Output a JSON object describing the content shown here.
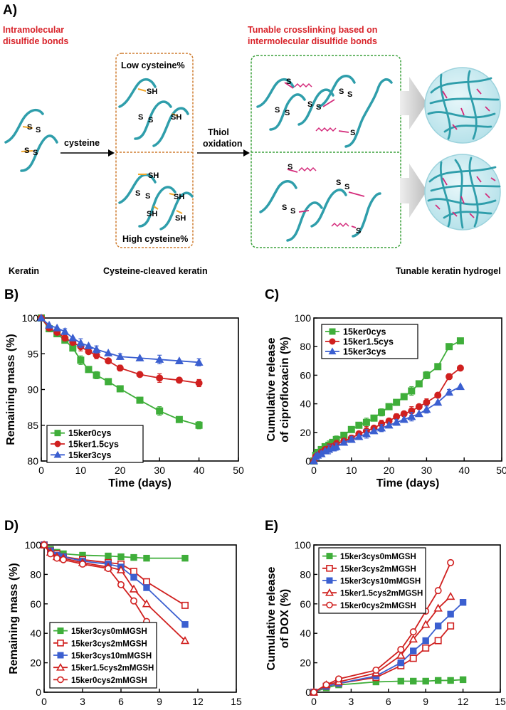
{
  "colors": {
    "green": "#3fae3a",
    "red": "#d0201f",
    "blue": "#3b5fd0",
    "redBright": "#e8272a",
    "teal": "#2f9eab",
    "pink": "#d42a7a",
    "orange": "#f0a62a",
    "darkred": "#d8232a",
    "dashOrange": "#cf7d30",
    "dashGreen": "#3aa03a"
  },
  "schematic": {
    "panel_label": "A)",
    "intramolecular": [
      "Intramolecular",
      "disulfide bonds"
    ],
    "tunable": [
      "Tunable crosslinking based on",
      "intermolecular disulfide bonds"
    ],
    "low": "Low cysteine%",
    "high": "High cysteine%",
    "cysteine": "cysteine",
    "thiol": [
      "Thiol",
      "oxidation"
    ],
    "keratin": "Keratin",
    "cleaved": "Cysteine-cleaved keratin",
    "hydrogel": "Tunable keratin hydrogel",
    "S": "S",
    "SH": "SH"
  },
  "chart_data": [
    {
      "id": "B",
      "label": "B)",
      "type": "line",
      "xlabel": "Time (days)",
      "ylabel": "Remaining mass (%)",
      "xlim": [
        0,
        50
      ],
      "ylim": [
        80,
        100
      ],
      "xticks": [
        0,
        10,
        20,
        30,
        40,
        50
      ],
      "yticks": [
        80,
        85,
        90,
        95,
        100
      ],
      "series": [
        {
          "name": "15ker0cys",
          "marker": "square",
          "filled": true,
          "color": "#3fae3a",
          "x": [
            0,
            2,
            4,
            6,
            8,
            10,
            12,
            14,
            17,
            20,
            25,
            30,
            35,
            40
          ],
          "y": [
            100,
            98.5,
            97.8,
            96.9,
            95.8,
            94.1,
            92.8,
            92.0,
            91.1,
            90.1,
            88.5,
            87.0,
            85.8,
            85.0
          ]
        },
        {
          "name": "15ker1.5cys",
          "marker": "circle",
          "filled": true,
          "color": "#d0201f",
          "x": [
            0,
            2,
            4,
            6,
            8,
            10,
            12,
            14,
            17,
            20,
            25,
            30,
            35,
            40
          ],
          "y": [
            100,
            98.6,
            98.0,
            97.2,
            96.6,
            96.0,
            95.3,
            94.8,
            94.0,
            93.0,
            92.1,
            91.6,
            91.3,
            90.9
          ]
        },
        {
          "name": "15ker3cys",
          "marker": "triangle",
          "filled": true,
          "color": "#3b5fd0",
          "x": [
            0,
            2,
            4,
            6,
            8,
            10,
            12,
            14,
            17,
            20,
            25,
            30,
            35,
            40
          ],
          "y": [
            100,
            99.0,
            98.6,
            98.1,
            97.2,
            96.5,
            96.1,
            95.6,
            95.1,
            94.6,
            94.4,
            94.2,
            94.0,
            93.8
          ]
        }
      ]
    },
    {
      "id": "C",
      "label": "C)",
      "type": "line",
      "xlabel": "Time (days)",
      "ylabel": [
        "Cumulative release",
        "of ciprofloxacin (%)"
      ],
      "xlim": [
        0,
        50
      ],
      "ylim": [
        0,
        100
      ],
      "xticks": [
        0,
        10,
        20,
        30,
        40,
        50
      ],
      "yticks": [
        0,
        20,
        40,
        60,
        80,
        100
      ],
      "series": [
        {
          "name": "15ker0cys",
          "marker": "square",
          "filled": true,
          "color": "#3fae3a",
          "x": [
            0,
            0.5,
            1,
            2,
            3,
            4,
            5,
            6,
            8,
            10,
            12,
            14,
            16,
            18,
            20,
            22,
            24,
            26,
            28,
            30,
            33,
            36,
            39
          ],
          "y": [
            0,
            4,
            6,
            8,
            10,
            11,
            13,
            15,
            18,
            22,
            25,
            27,
            30,
            34,
            38,
            41,
            45,
            49,
            54,
            60,
            66,
            80,
            84
          ]
        },
        {
          "name": "15ker1.5cys",
          "marker": "circle",
          "filled": true,
          "color": "#d0201f",
          "x": [
            0,
            0.5,
            1,
            2,
            3,
            4,
            5,
            6,
            8,
            10,
            12,
            14,
            16,
            18,
            20,
            22,
            24,
            26,
            28,
            30,
            33,
            36,
            39
          ],
          "y": [
            0,
            3,
            4,
            6,
            8,
            9,
            10,
            12,
            14,
            16,
            19,
            21,
            23,
            26,
            28,
            31,
            33,
            35,
            38,
            41,
            46,
            59,
            65
          ]
        },
        {
          "name": "15ker3cys",
          "marker": "triangle",
          "filled": true,
          "color": "#3b5fd0",
          "x": [
            0,
            0.5,
            1,
            2,
            3,
            4,
            5,
            6,
            8,
            10,
            12,
            14,
            16,
            18,
            20,
            22,
            24,
            26,
            28,
            30,
            33,
            36,
            39
          ],
          "y": [
            0,
            3,
            4,
            5,
            7,
            8,
            9,
            10,
            13,
            15,
            17,
            19,
            21,
            23,
            25,
            27,
            29,
            31,
            33,
            36,
            41,
            48,
            52
          ]
        }
      ]
    },
    {
      "id": "D",
      "label": "D)",
      "type": "line",
      "xlabel": "Time (days)",
      "ylabel": "Remaining mass (%)",
      "xlim": [
        0,
        15
      ],
      "ylim": [
        0,
        100
      ],
      "xticks": [
        0,
        3,
        6,
        9,
        12,
        15
      ],
      "yticks": [
        0,
        20,
        40,
        60,
        80,
        100
      ],
      "series": [
        {
          "name": "15ker3cys0mMGSH",
          "marker": "square",
          "filled": true,
          "color": "#3fae3a",
          "x": [
            0,
            0.5,
            1,
            1.5,
            3,
            5,
            6,
            7,
            8,
            11
          ],
          "y": [
            100,
            97,
            95,
            94,
            93,
            92.5,
            92,
            91.5,
            91,
            91
          ]
        },
        {
          "name": "15ker3cys2mMGSH",
          "marker": "square",
          "filled": false,
          "color": "#d0201f",
          "x": [
            0,
            0.5,
            1,
            1.5,
            3,
            5,
            6,
            7,
            8,
            11
          ],
          "y": [
            100,
            96,
            94,
            92,
            90,
            88,
            87,
            82,
            75,
            59
          ]
        },
        {
          "name": "15ker3cys10mMGSH",
          "marker": "square",
          "filled": true,
          "color": "#3b5fd0",
          "x": [
            0,
            0.5,
            1,
            1.5,
            3,
            5,
            6,
            7,
            8,
            11
          ],
          "y": [
            100,
            96,
            93,
            92,
            89,
            87,
            85,
            78,
            71,
            46
          ]
        },
        {
          "name": "15ker1.5cys2mMGSH",
          "marker": "triangle",
          "filled": false,
          "color": "#d0201f",
          "x": [
            0,
            0.5,
            1,
            1.5,
            3,
            5,
            6,
            7,
            8,
            11
          ],
          "y": [
            100,
            95,
            92,
            91,
            88,
            85,
            83,
            70,
            60,
            35
          ]
        },
        {
          "name": "15ker0cys2mMGSH",
          "marker": "circle",
          "filled": false,
          "color": "#d0201f",
          "x": [
            0,
            0.5,
            1,
            1.5,
            3,
            5,
            6,
            7,
            8
          ],
          "y": [
            100,
            94,
            91,
            90,
            87,
            84,
            73,
            62,
            48
          ]
        }
      ]
    },
    {
      "id": "E",
      "label": "E)",
      "type": "line",
      "xlabel": "Time (days)",
      "ylabel": [
        "Cumulative release",
        "of DOX (%)"
      ],
      "xlim": [
        0,
        15
      ],
      "ylim": [
        0,
        100
      ],
      "xticks": [
        0,
        3,
        6,
        9,
        12,
        15
      ],
      "yticks": [
        0,
        20,
        40,
        60,
        80,
        100
      ],
      "series": [
        {
          "name": "15ker3cys0mMGSH",
          "marker": "square",
          "filled": true,
          "color": "#3fae3a",
          "x": [
            0,
            1,
            2,
            5,
            7,
            8,
            9,
            10,
            11,
            12
          ],
          "y": [
            0,
            3,
            5,
            7,
            7.5,
            7.5,
            7.5,
            8,
            8,
            8.5
          ]
        },
        {
          "name": "15ker3cys2mMGSH",
          "marker": "square",
          "filled": false,
          "color": "#d0201f",
          "x": [
            0,
            1,
            2,
            5,
            7,
            8,
            9,
            10,
            11
          ],
          "y": [
            0,
            4,
            6,
            10,
            18,
            23,
            30,
            35,
            45
          ]
        },
        {
          "name": "15ker3cys10mMGSH",
          "marker": "square",
          "filled": true,
          "color": "#3b5fd0",
          "x": [
            0,
            1,
            2,
            5,
            7,
            8,
            9,
            10,
            11,
            12
          ],
          "y": [
            0,
            4,
            6,
            11,
            20,
            28,
            35,
            45,
            53,
            61
          ]
        },
        {
          "name": "15ker1.5cys2mMGSH",
          "marker": "triangle",
          "filled": false,
          "color": "#d0201f",
          "x": [
            0,
            1,
            2,
            5,
            7,
            8,
            9,
            10,
            11
          ],
          "y": [
            0,
            5,
            7,
            13,
            25,
            36,
            46,
            57,
            65
          ]
        },
        {
          "name": "15ker0cys2mMGSH",
          "marker": "circle",
          "filled": false,
          "color": "#d0201f",
          "x": [
            0,
            1,
            2,
            5,
            7,
            8,
            9,
            10,
            11
          ],
          "y": [
            0,
            5,
            9,
            15,
            29,
            41,
            55,
            69,
            88
          ]
        }
      ]
    }
  ]
}
